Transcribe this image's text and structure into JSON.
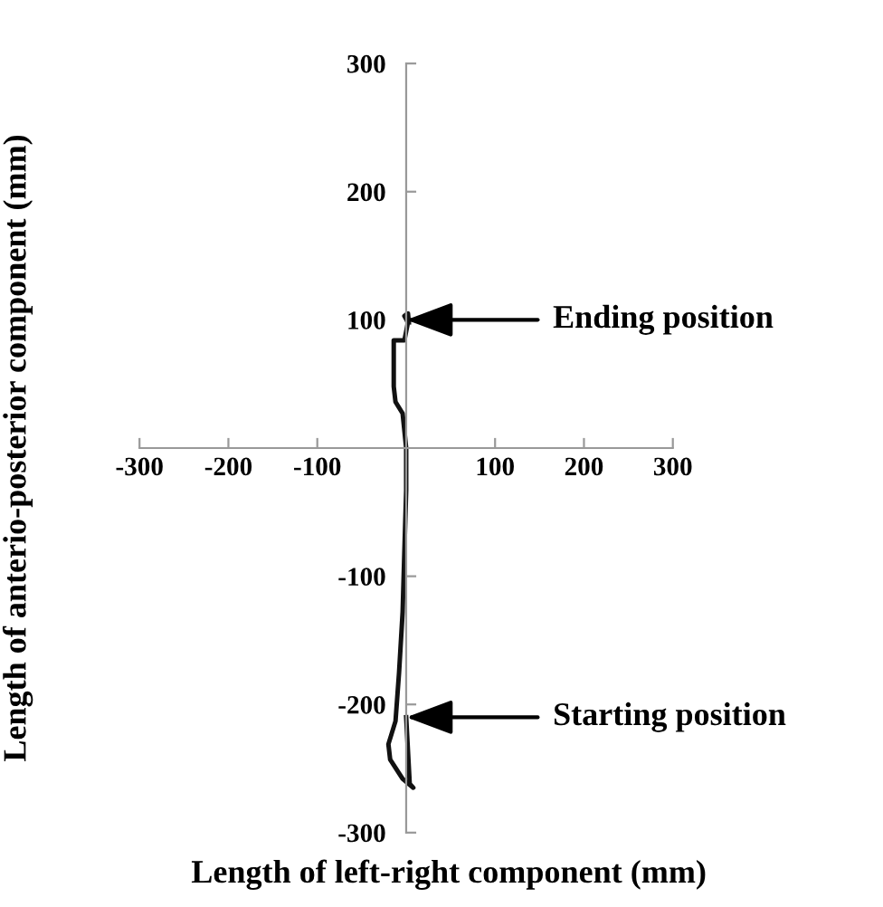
{
  "chart_data": {
    "type": "line",
    "xlabel": "Length of left-right component (mm)",
    "ylabel": "Length of anterio-posterior component (mm)",
    "xlim": [
      -300,
      300
    ],
    "ylim": [
      -300,
      300
    ],
    "xticks": [
      -300,
      -200,
      -100,
      100,
      200,
      300
    ],
    "yticks": [
      -300,
      -200,
      -100,
      100,
      200,
      300
    ],
    "grid": false,
    "legend": false,
    "marker": "none",
    "line_style": "solid",
    "series": [
      {
        "color": "#111111",
        "x": [
          0,
          4,
          8,
          -4,
          -18,
          -20,
          -12,
          -8,
          -4,
          -2,
          0,
          0,
          -4,
          -12,
          -14,
          -14,
          -14,
          -2,
          0,
          2,
          -2,
          2,
          3
        ],
        "values": [
          -210,
          -262,
          -265,
          -258,
          -243,
          -231,
          -213,
          -175,
          -128,
          -80,
          -33,
          0,
          27,
          36,
          48,
          67,
          84,
          84,
          91,
          98,
          103,
          105,
          98
        ]
      }
    ],
    "annotations": [
      {
        "text": "Ending position",
        "x": 0,
        "y": 100
      },
      {
        "text": "Starting position",
        "x": 0,
        "y": -210
      }
    ]
  }
}
